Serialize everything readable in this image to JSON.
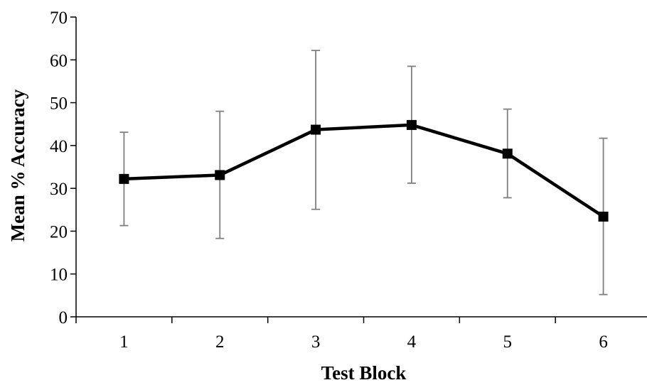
{
  "chart_data": {
    "type": "line",
    "xlabel": "Test Block",
    "ylabel": "Mean % Accuracy",
    "ylim": [
      0,
      70
    ],
    "yticks": [
      0,
      10,
      20,
      30,
      40,
      50,
      60,
      70
    ],
    "categories": [
      "1",
      "2",
      "3",
      "4",
      "5",
      "6"
    ],
    "series": [
      {
        "values": [
          32.2,
          33.1,
          43.7,
          44.8,
          38.1,
          23.4
        ],
        "error_low": [
          21.3,
          18.3,
          25.1,
          31.2,
          27.8,
          5.2
        ],
        "error_high": [
          43.1,
          48.0,
          62.2,
          58.5,
          48.5,
          41.7
        ]
      }
    ],
    "grid": false,
    "line_color": "#000000",
    "error_bar_color": "#808080",
    "marker": "square"
  }
}
